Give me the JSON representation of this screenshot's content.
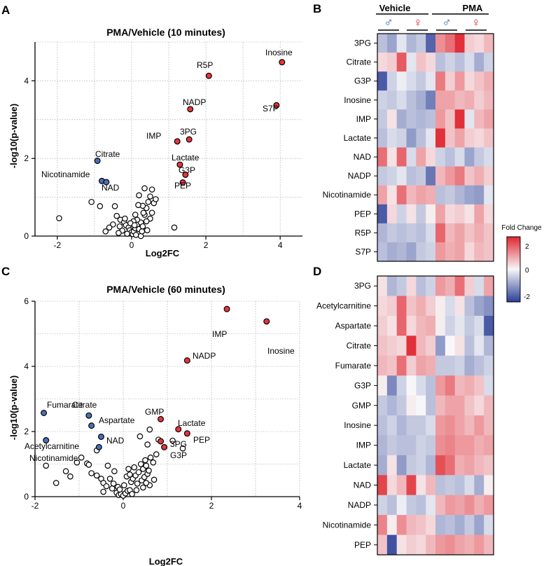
{
  "panels": {
    "a": "A",
    "b": "B",
    "c": "C",
    "d": "D"
  },
  "colors": {
    "up": "#e8343b",
    "down": "#4a6fb6",
    "neutral": "#ffffff",
    "heat_low": "#2b3e96",
    "heat_mid": "#f7f7f9",
    "heat_high": "#e0262f"
  },
  "chart_data": [
    {
      "type": "scatter",
      "panel": "A",
      "title": "PMA/Vehicle (10 minutes)",
      "xlabel": "Log2FC",
      "ylabel": "-log10(p-value)",
      "xlim": [
        -2.6,
        4.6
      ],
      "ylim": [
        0,
        5
      ],
      "xticks": [
        "-2",
        "0",
        "2",
        "4"
      ],
      "yticks": [
        "0",
        "2",
        "4"
      ],
      "grid": true,
      "highlighted": [
        {
          "name": "Inosine",
          "x": 4.05,
          "y": 4.48,
          "direction": "up"
        },
        {
          "name": "R5P",
          "x": 2.08,
          "y": 4.13,
          "direction": "up"
        },
        {
          "name": "S7P",
          "x": 3.9,
          "y": 3.37,
          "direction": "up"
        },
        {
          "name": "NADP",
          "x": 1.58,
          "y": 3.27,
          "direction": "up"
        },
        {
          "name": "IMP",
          "x": 1.23,
          "y": 2.44,
          "direction": "up"
        },
        {
          "name": "3PG",
          "x": 1.55,
          "y": 2.49,
          "direction": "up"
        },
        {
          "name": "Lactate",
          "x": 1.3,
          "y": 1.84,
          "direction": "up"
        },
        {
          "name": "G3P",
          "x": 1.45,
          "y": 1.58,
          "direction": "up"
        },
        {
          "name": "PEP",
          "x": 1.38,
          "y": 1.38,
          "direction": "up"
        },
        {
          "name": "Citrate",
          "x": -0.92,
          "y": 1.94,
          "direction": "down"
        },
        {
          "name": "Nicotinamide",
          "x": -0.8,
          "y": 1.42,
          "direction": "down"
        },
        {
          "name": "NAD",
          "x": -0.68,
          "y": 1.39,
          "direction": "down"
        }
      ],
      "other_points": [
        [
          -1.95,
          0.46
        ],
        [
          -1.08,
          0.88
        ],
        [
          -0.85,
          0.77
        ],
        [
          -0.45,
          0.77
        ],
        [
          -0.4,
          0.52
        ],
        [
          -0.3,
          0.42
        ],
        [
          -0.2,
          0.36
        ],
        [
          -0.15,
          0.28
        ],
        [
          -0.08,
          0.22
        ],
        [
          -0.05,
          0.15
        ],
        [
          0.0,
          0.1
        ],
        [
          0.03,
          0.05
        ],
        [
          0.06,
          0.12
        ],
        [
          0.1,
          0.2
        ],
        [
          0.12,
          0.03
        ],
        [
          0.15,
          0.3
        ],
        [
          0.2,
          0.18
        ],
        [
          -0.12,
          0.06
        ],
        [
          -0.25,
          0.14
        ],
        [
          -0.32,
          0.25
        ],
        [
          -0.5,
          0.3
        ],
        [
          -0.6,
          0.22
        ],
        [
          -0.7,
          0.12
        ],
        [
          0.25,
          0.35
        ],
        [
          0.3,
          0.25
        ],
        [
          0.35,
          0.55
        ],
        [
          0.4,
          0.72
        ],
        [
          0.45,
          0.88
        ],
        [
          0.5,
          1.02
        ],
        [
          0.55,
          1.2
        ],
        [
          0.35,
          1.23
        ],
        [
          0.2,
          1.05
        ],
        [
          0.55,
          0.6
        ],
        [
          0.6,
          0.85
        ],
        [
          0.65,
          0.95
        ],
        [
          0.3,
          0.78
        ],
        [
          0.5,
          0.45
        ],
        [
          0.18,
          0.8
        ],
        [
          0.15,
          0.42
        ],
        [
          0.05,
          0.38
        ],
        [
          -0.03,
          0.33
        ],
        [
          0.1,
          0.55
        ],
        [
          0.25,
          0.0
        ],
        [
          0.28,
          0.12
        ],
        [
          0.4,
          0.38
        ],
        [
          -0.35,
          0.08
        ],
        [
          -0.18,
          0.45
        ],
        [
          0.08,
          0.28
        ],
        [
          0.42,
          0.15
        ],
        [
          0.32,
          0.6
        ],
        [
          1.15,
          0.22
        ]
      ]
    },
    {
      "type": "scatter",
      "panel": "C",
      "title": "PMA/Vehicle (60 minutes)",
      "xlabel": "Log2FC",
      "ylabel": "-log10(p-value)",
      "xlim": [
        -2,
        4
      ],
      "ylim": [
        0,
        6
      ],
      "xticks": [
        "-2",
        "0",
        "2",
        "4"
      ],
      "yticks": [
        "0",
        "2",
        "4",
        "6"
      ],
      "grid": true,
      "highlighted": [
        {
          "name": "IMP",
          "x": 2.35,
          "y": 5.76,
          "direction": "up"
        },
        {
          "name": "Inosine",
          "x": 3.25,
          "y": 5.38,
          "direction": "up"
        },
        {
          "name": "NADP",
          "x": 1.45,
          "y": 4.18,
          "direction": "up"
        },
        {
          "name": "GMP",
          "x": 0.85,
          "y": 2.38,
          "direction": "up"
        },
        {
          "name": "Lactate",
          "x": 1.25,
          "y": 2.07,
          "direction": "up"
        },
        {
          "name": "PEP",
          "x": 1.45,
          "y": 1.94,
          "direction": "up"
        },
        {
          "name": "3PG",
          "x": 0.85,
          "y": 1.7,
          "direction": "up"
        },
        {
          "name": "G3P",
          "x": 0.93,
          "y": 1.52,
          "direction": "up"
        },
        {
          "name": "Fumarate",
          "x": -1.8,
          "y": 2.57,
          "direction": "down"
        },
        {
          "name": "Citrate",
          "x": -0.78,
          "y": 2.49,
          "direction": "down"
        },
        {
          "name": "Aspartate",
          "x": -0.72,
          "y": 2.18,
          "direction": "down"
        },
        {
          "name": "NAD",
          "x": -0.5,
          "y": 1.84,
          "direction": "down"
        },
        {
          "name": "Acetylcarnitine",
          "x": -1.75,
          "y": 1.73,
          "direction": "down"
        },
        {
          "name": "Nicotinamide",
          "x": -0.55,
          "y": 1.52,
          "direction": "down"
        }
      ],
      "other_points": [
        [
          -1.75,
          0.95
        ],
        [
          -1.52,
          0.42
        ],
        [
          -1.3,
          0.78
        ],
        [
          -1.2,
          0.62
        ],
        [
          -1.05,
          1.05
        ],
        [
          -0.95,
          1.2
        ],
        [
          -0.82,
          1.02
        ],
        [
          -0.78,
          0.98
        ],
        [
          -0.72,
          0.72
        ],
        [
          -0.6,
          1.42
        ],
        [
          -0.5,
          0.55
        ],
        [
          -0.45,
          0.42
        ],
        [
          -0.38,
          0.32
        ],
        [
          -0.3,
          0.55
        ],
        [
          -0.25,
          0.25
        ],
        [
          -0.2,
          0.78
        ],
        [
          -0.15,
          0.12
        ],
        [
          -0.1,
          0.05
        ],
        [
          -0.05,
          0.08
        ],
        [
          0.0,
          0.03
        ],
        [
          0.05,
          0.1
        ],
        [
          0.1,
          0.18
        ],
        [
          0.15,
          0.2
        ],
        [
          -0.12,
          0.3
        ],
        [
          -0.22,
          0.4
        ],
        [
          0.18,
          0.45
        ],
        [
          0.22,
          0.55
        ],
        [
          0.28,
          0.65
        ],
        [
          0.32,
          0.4
        ],
        [
          0.35,
          0.75
        ],
        [
          0.42,
          0.5
        ],
        [
          0.45,
          0.85
        ],
        [
          0.48,
          0.6
        ],
        [
          0.52,
          0.95
        ],
        [
          0.55,
          0.7
        ],
        [
          0.58,
          0.8
        ],
        [
          0.62,
          1.2
        ],
        [
          0.68,
          1.05
        ],
        [
          0.5,
          1.12
        ],
        [
          0.4,
          1.0
        ],
        [
          0.25,
          0.9
        ],
        [
          0.12,
          0.85
        ],
        [
          0.08,
          0.62
        ],
        [
          0.3,
          0.2
        ],
        [
          0.6,
          0.35
        ],
        [
          0.75,
          1.3
        ],
        [
          0.8,
          1.75
        ],
        [
          0.55,
          1.6
        ],
        [
          0.38,
          1.85
        ],
        [
          1.35,
          1.48
        ],
        [
          1.12,
          1.72
        ],
        [
          0.6,
          2.06
        ],
        [
          -0.08,
          0.22
        ],
        [
          0.02,
          0.35
        ],
        [
          0.15,
          0.68
        ],
        [
          -0.35,
          0.95
        ],
        [
          -0.6,
          0.65
        ],
        [
          0.45,
          0.28
        ],
        [
          0.7,
          0.52
        ],
        [
          -0.45,
          0.15
        ],
        [
          0.2,
          0.08
        ],
        [
          0.52,
          0.42
        ]
      ]
    },
    {
      "type": "heatmap",
      "panel": "B",
      "groups": [
        "Vehicle",
        "PMA"
      ],
      "sexes": [
        "♂",
        "♀",
        "♂",
        "♀"
      ],
      "colorbar": {
        "title": "Fold Change",
        "ticks": [
          "2",
          "0",
          "-2"
        ],
        "range": [
          -2,
          2
        ]
      },
      "rows": [
        "3PG",
        "Citrate",
        "G3P",
        "Inosine",
        "IMP",
        "Lactate",
        "NAD",
        "NADP",
        "Nicotinamide",
        "PEP",
        "R5P",
        "S7P"
      ],
      "values": [
        [
          -0.6,
          -0.9,
          -0.2,
          -0.7,
          -0.5,
          -1.6,
          1.0,
          1.3,
          1.9,
          0.4,
          0.3,
          0.6
        ],
        [
          0.3,
          0.4,
          1.5,
          -0.2,
          0.5,
          0.3,
          -0.6,
          -0.4,
          -0.6,
          -0.3,
          -0.8,
          -0.4
        ],
        [
          -1.7,
          -0.4,
          -0.1,
          -0.3,
          -0.5,
          -0.2,
          1.2,
          0.4,
          0.9,
          0.3,
          0.5,
          0.7
        ],
        [
          -0.4,
          -0.5,
          -0.3,
          -0.6,
          -0.8,
          -1.3,
          0.8,
          0.8,
          0.6,
          0.7,
          0.4,
          0.6
        ],
        [
          -0.5,
          0.2,
          -0.8,
          -0.6,
          -0.7,
          -0.6,
          0.9,
          0.5,
          1.9,
          -0.2,
          0.6,
          0.8
        ],
        [
          -0.6,
          -0.3,
          -0.4,
          -1.0,
          -0.6,
          -0.2,
          1.9,
          0.5,
          0.8,
          0.4,
          0.3,
          0.5
        ],
        [
          1.3,
          0.2,
          1.4,
          -0.3,
          0.8,
          0.3,
          -0.4,
          -0.6,
          -0.3,
          -0.9,
          -0.5,
          -0.3
        ],
        [
          -0.5,
          -0.4,
          -0.2,
          -0.6,
          -0.5,
          -1.4,
          0.6,
          0.9,
          1.2,
          0.5,
          0.7,
          0.4
        ],
        [
          0.8,
          0.2,
          1.3,
          0.6,
          0.8,
          0.7,
          -0.6,
          -0.5,
          -0.7,
          -0.9,
          -1.0,
          -0.2
        ],
        [
          -1.7,
          0.3,
          -0.4,
          0.2,
          -0.5,
          0.1,
          0.8,
          0.3,
          0.4,
          0.2,
          0.8,
          0.3
        ],
        [
          -0.7,
          -0.5,
          -0.6,
          -0.5,
          -0.6,
          -0.3,
          1.4,
          0.6,
          0.8,
          0.5,
          0.7,
          0.5
        ],
        [
          -0.6,
          -0.8,
          -0.7,
          -0.9,
          -0.5,
          -0.4,
          0.9,
          0.7,
          0.8,
          0.3,
          0.6,
          0.5
        ]
      ]
    },
    {
      "type": "heatmap",
      "panel": "D",
      "rows": [
        "3PG",
        "Acetylcarnitine",
        "Aspartate",
        "Citrate",
        "Fumarate",
        "G3P",
        "GMP",
        "Inosine",
        "IMP",
        "Lactate",
        "NAD",
        "NADP",
        "Nicotinamide",
        "PEP"
      ],
      "values": [
        [
          0.2,
          -0.7,
          -0.5,
          0.3,
          -0.6,
          -0.4,
          0.9,
          0.7,
          1.3,
          0.4,
          -0.3,
          0.8
        ],
        [
          0.3,
          0.4,
          1.4,
          0.5,
          0.7,
          0.4,
          0.1,
          -0.3,
          0.2,
          -0.6,
          -0.9,
          -1.1
        ],
        [
          0.4,
          0.2,
          1.4,
          0.3,
          0.6,
          0.7,
          0.1,
          -0.4,
          -0.2,
          -0.5,
          -0.3,
          -1.7
        ],
        [
          0.5,
          0.4,
          0.3,
          1.9,
          0.6,
          0.4,
          -1.0,
          0.0,
          0.2,
          -0.6,
          -0.2,
          -0.7
        ],
        [
          0.6,
          0.5,
          1.3,
          0.4,
          0.8,
          0.7,
          -0.5,
          -0.5,
          -0.4,
          -0.8,
          -0.6,
          -0.4
        ],
        [
          0.1,
          -1.2,
          -0.4,
          0.0,
          -0.3,
          -0.6,
          0.9,
          1.2,
          0.6,
          0.7,
          0.5,
          -0.3
        ],
        [
          -0.5,
          -0.7,
          -0.5,
          0.1,
          0.0,
          -0.6,
          0.6,
          0.8,
          0.8,
          0.5,
          0.3,
          0.6
        ],
        [
          -0.6,
          -0.4,
          -0.7,
          -0.5,
          -0.5,
          -0.3,
          0.9,
          1.0,
          0.8,
          0.6,
          0.9,
          0.6
        ],
        [
          -0.7,
          -0.5,
          -0.6,
          -0.6,
          -0.4,
          -0.5,
          1.0,
          1.1,
          0.9,
          0.9,
          0.7,
          0.8
        ],
        [
          -0.8,
          0.2,
          -1.0,
          -0.5,
          -0.4,
          -0.7,
          1.6,
          1.3,
          0.7,
          0.8,
          0.6,
          0.5
        ],
        [
          1.7,
          0.3,
          0.6,
          1.7,
          0.2,
          0.6,
          -0.6,
          -0.5,
          -0.6,
          -0.3,
          -0.8,
          0.1
        ],
        [
          -0.4,
          -0.6,
          -0.1,
          -0.5,
          -0.6,
          -0.2,
          0.6,
          0.9,
          0.8,
          1.0,
          0.7,
          0.9
        ],
        [
          1.1,
          0.1,
          1.0,
          0.6,
          0.5,
          0.3,
          -0.7,
          -0.6,
          -0.8,
          -0.5,
          -0.9,
          -0.3
        ],
        [
          0.5,
          -1.8,
          0.2,
          0.4,
          0.3,
          0.6,
          0.9,
          1.0,
          0.8,
          0.7,
          0.9,
          0.6
        ]
      ]
    }
  ]
}
